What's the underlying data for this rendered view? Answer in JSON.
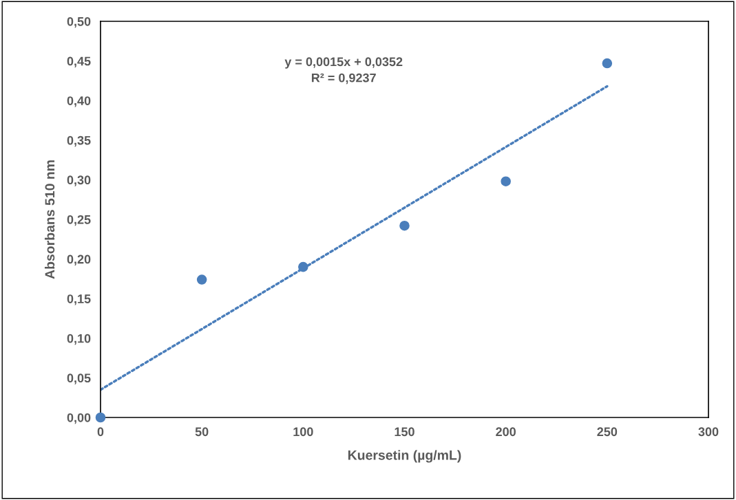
{
  "chart_data": {
    "type": "scatter",
    "xlabel": "Kuersetin (µg/mL)",
    "ylabel": "Absorbans 510 nm",
    "annotations": [
      "y = 0,0015x + 0,0352",
      "R² = 0,9237"
    ],
    "series": [
      {
        "color": "#4a7ebb",
        "marker": "circle",
        "x": [
          0,
          50,
          100,
          150,
          200,
          250
        ],
        "values": [
          0,
          0.174,
          0.19,
          0.242,
          0.298,
          0.447
        ]
      },
      {
        "type": "line",
        "color": "#4a7ebb",
        "line_style": "dotted",
        "x": [
          0,
          250
        ],
        "values": [
          0.035,
          0.418
        ]
      }
    ],
    "xlim": [
      0,
      300
    ],
    "xticks": [
      0,
      50,
      100,
      150,
      200,
      250,
      300
    ],
    "ylim": [
      0,
      0.5
    ],
    "yticks": [
      {
        "value": 0,
        "label": "0,00"
      },
      {
        "value": 0.05,
        "label": "0,05"
      },
      {
        "value": 0.1,
        "label": "0,10"
      },
      {
        "value": 0.15,
        "label": "0,15"
      },
      {
        "value": 0.2,
        "label": "0,20"
      },
      {
        "value": 0.25,
        "label": "0,25"
      },
      {
        "value": 0.3,
        "label": "0,30"
      },
      {
        "value": 0.35,
        "label": "0,35"
      },
      {
        "value": 0.4,
        "label": "0,40"
      },
      {
        "value": 0.45,
        "label": "0,45"
      },
      {
        "value": 0.5,
        "label": "0,50"
      }
    ],
    "grid": false,
    "legend": false
  }
}
